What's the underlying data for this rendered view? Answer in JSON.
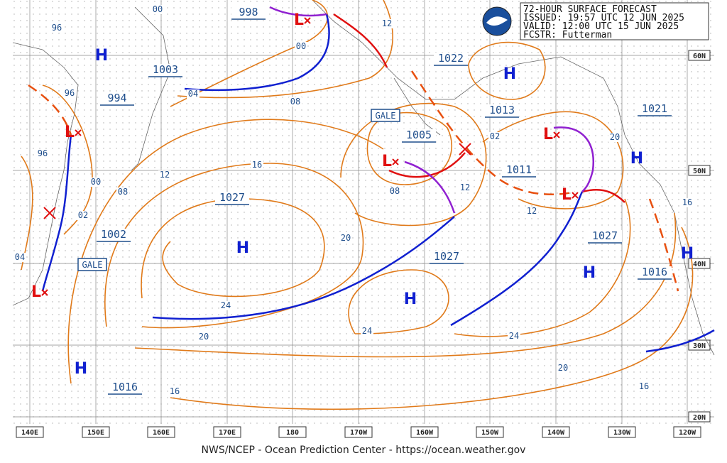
{
  "header": {
    "lines": [
      "72-HOUR SURFACE FORECAST",
      "ISSUED: 19:57 UTC 12 JUN 2025",
      "VALID:  12:00 UTC 15 JUN 2025",
      "FCSTR:  Futterman"
    ]
  },
  "pressure_centers": [
    "998",
    "1003",
    "994",
    "1022",
    "1013",
    "1021",
    "1005",
    "1011",
    "1027",
    "1002",
    "1027",
    "1027",
    "1016",
    "1016"
  ],
  "isobar_labels": [
    "00",
    "96",
    "00",
    "12",
    "04",
    "08",
    "96",
    "96",
    "00",
    "08",
    "12",
    "16",
    "02",
    "02",
    "04",
    "08",
    "12",
    "12",
    "20",
    "20",
    "16",
    "24",
    "20",
    "24",
    "24",
    "20",
    "16",
    "16"
  ],
  "highs": [
    "H",
    "H",
    "H",
    "H",
    "H",
    "H",
    "H",
    "H"
  ],
  "lows": [
    "L",
    "L",
    "L",
    "L",
    "L",
    "L"
  ],
  "warnings": [
    "GALE",
    "GALE"
  ],
  "longitude_labels": [
    "140E",
    "150E",
    "160E",
    "170E",
    "180",
    "170W",
    "160W",
    "150W",
    "140W",
    "130W",
    "120W"
  ],
  "latitude_labels": [
    "60N",
    "50N",
    "40N",
    "30N",
    "20N"
  ],
  "footer": "NWS/NCEP - Ocean Prediction Center - https://ocean.weather.gov"
}
